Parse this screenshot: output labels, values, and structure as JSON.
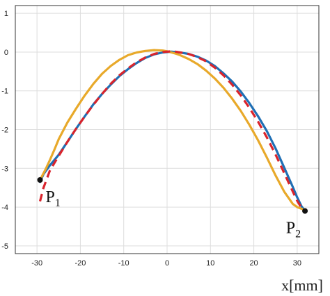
{
  "chart_data": {
    "type": "line",
    "title": "",
    "xlabel": "x[mm]",
    "ylabel": "",
    "xlim": [
      -35,
      35
    ],
    "ylim": [
      -5.2,
      1.2
    ],
    "x_ticks": [
      -30,
      -20,
      -10,
      0,
      10,
      20,
      30
    ],
    "y_ticks": [
      -5,
      -4,
      -3,
      -2,
      -1,
      0,
      1
    ],
    "grid": true,
    "series": [
      {
        "color": "#1f6fb5",
        "style": "solid",
        "x": [
          -29.3,
          -28.5,
          -27,
          -25,
          -23,
          -21,
          -19,
          -17,
          -15,
          -13,
          -11,
          -9,
          -7,
          -5,
          -3,
          -1,
          0,
          1,
          2,
          3,
          5,
          7,
          9,
          11,
          13,
          15,
          17,
          19,
          21,
          23,
          25,
          27,
          29,
          30,
          31,
          31.8
        ],
        "y": [
          -3.35,
          -3.15,
          -2.92,
          -2.65,
          -2.32,
          -1.98,
          -1.66,
          -1.35,
          -1.08,
          -0.84,
          -0.62,
          -0.44,
          -0.28,
          -0.15,
          -0.06,
          -0.01,
          0.0,
          0.01,
          0.0,
          -0.01,
          -0.05,
          -0.12,
          -0.22,
          -0.36,
          -0.55,
          -0.76,
          -1.02,
          -1.32,
          -1.66,
          -2.04,
          -2.48,
          -2.98,
          -3.48,
          -3.75,
          -3.98,
          -4.1
        ]
      },
      {
        "color": "#e8a92a",
        "style": "solid",
        "x": [
          -29.3,
          -28,
          -27,
          -26,
          -25,
          -23,
          -21,
          -19,
          -17,
          -15,
          -13,
          -11,
          -9,
          -7,
          -5,
          -3,
          -1,
          0,
          1,
          2,
          3,
          5,
          7,
          9,
          11,
          13,
          15,
          17,
          19,
          21,
          23,
          25,
          27,
          29,
          30,
          31.2
        ],
        "y": [
          -3.3,
          -3.02,
          -2.78,
          -2.52,
          -2.25,
          -1.82,
          -1.46,
          -1.12,
          -0.82,
          -0.56,
          -0.36,
          -0.2,
          -0.08,
          -0.01,
          0.03,
          0.05,
          0.04,
          0.02,
          -0.01,
          -0.04,
          -0.08,
          -0.18,
          -0.31,
          -0.48,
          -0.68,
          -0.92,
          -1.2,
          -1.52,
          -1.88,
          -2.28,
          -2.72,
          -3.18,
          -3.6,
          -3.92,
          -4.0,
          -4.05
        ]
      },
      {
        "color": "#d9242c",
        "style": "dashed",
        "x": [
          -29.3,
          -28.5,
          -27,
          -25,
          -23,
          -21,
          -19,
          -17,
          -15,
          -13,
          -11,
          -9,
          -7,
          -5,
          -3,
          -1,
          0,
          1,
          2,
          3,
          5,
          7,
          9,
          11,
          13,
          15,
          17,
          19,
          21,
          23,
          25,
          27,
          29,
          30,
          31
        ],
        "y": [
          -3.85,
          -3.5,
          -3.05,
          -2.68,
          -2.32,
          -1.98,
          -1.66,
          -1.36,
          -1.08,
          -0.82,
          -0.6,
          -0.42,
          -0.26,
          -0.14,
          -0.05,
          0.0,
          0.01,
          0.02,
          0.01,
          -0.01,
          -0.05,
          -0.13,
          -0.24,
          -0.4,
          -0.6,
          -0.84,
          -1.12,
          -1.44,
          -1.8,
          -2.2,
          -2.64,
          -3.12,
          -3.6,
          -3.84,
          -4.02
        ]
      }
    ],
    "points": [
      {
        "x": -29.3,
        "y": -3.3,
        "label_main": "P",
        "label_sub": "1",
        "label_side": "right-below"
      },
      {
        "x": 31.8,
        "y": -4.1,
        "label_main": "P",
        "label_sub": "2",
        "label_side": "left-below"
      }
    ]
  }
}
